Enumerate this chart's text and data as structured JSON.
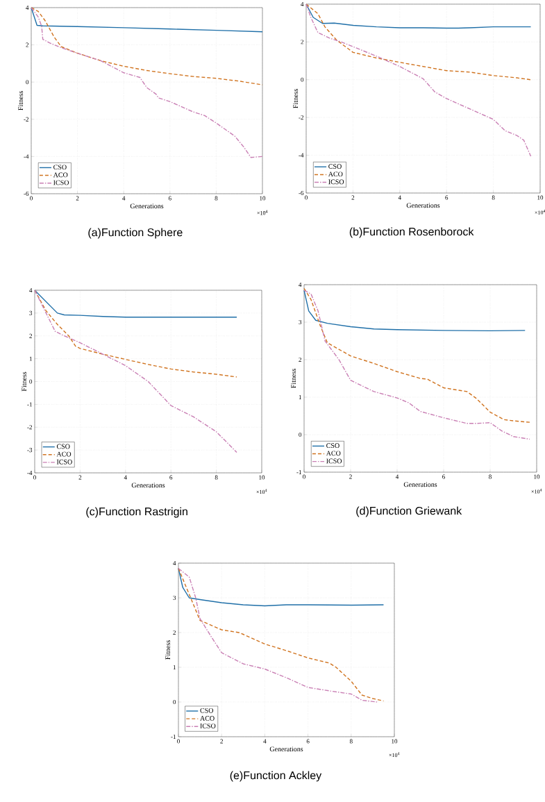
{
  "chart_data": [
    {
      "type": "line",
      "title": "(a)Function Sphere",
      "xlabel": "Generations",
      "ylabel": "Fitness",
      "annotations": [
        "×10$^{4}$"
      ],
      "xlim": [
        0,
        10
      ],
      "ylim": [
        -6,
        4
      ],
      "xticks": [
        0,
        2,
        4,
        6,
        8,
        10
      ],
      "yticks": [
        -6,
        -4,
        -2,
        0,
        2,
        4
      ],
      "grid": true,
      "legend": "bottom left",
      "series": [
        {
          "name": "CSO",
          "color": "#1f6fa8",
          "line_style": "solid",
          "x": [
            0,
            0.25,
            0.5,
            2,
            4,
            6,
            8,
            10
          ],
          "values": [
            4,
            3.05,
            3.02,
            2.98,
            2.92,
            2.85,
            2.78,
            2.7
          ]
        },
        {
          "name": "ACO",
          "color": "#d0731f",
          "line_style": "dashed",
          "x": [
            0,
            0.3,
            0.6,
            1,
            1.3,
            2,
            3,
            4,
            5,
            6,
            7,
            8,
            9,
            10
          ],
          "values": [
            4,
            3.8,
            3.3,
            2.4,
            1.9,
            1.55,
            1.15,
            0.85,
            0.62,
            0.45,
            0.3,
            0.2,
            0.05,
            -0.15
          ]
        },
        {
          "name": "ICSO",
          "color": "#c97fb4",
          "line_style": "dashdot",
          "x": [
            0,
            0.3,
            0.45,
            0.5,
            0.8,
            1.3,
            2,
            3,
            4,
            4.7,
            5,
            5.4,
            5.5,
            6,
            7,
            7.5,
            8,
            8.8,
            9.2,
            9.5,
            10
          ],
          "values": [
            4,
            3.5,
            3.0,
            2.3,
            2.1,
            1.85,
            1.55,
            1.15,
            0.5,
            0.25,
            -0.3,
            -0.65,
            -0.85,
            -1.05,
            -1.6,
            -1.8,
            -2.2,
            -2.9,
            -3.5,
            -4.05,
            -4.0
          ]
        }
      ]
    },
    {
      "type": "line",
      "title": "(b)Function Rosenborock",
      "xlabel": "Generations",
      "ylabel": "Fitness",
      "annotations": [
        "×10$^{4}$"
      ],
      "xlim": [
        0,
        10
      ],
      "ylim": [
        -6,
        4
      ],
      "xticks": [
        0,
        2,
        4,
        6,
        8,
        10
      ],
      "yticks": [
        -6,
        -4,
        -2,
        0,
        2,
        4
      ],
      "grid": true,
      "legend": "bottom left",
      "series": [
        {
          "name": "CSO",
          "color": "#1f6fa8",
          "line_style": "solid",
          "x": [
            0,
            0.3,
            0.7,
            1.2,
            2,
            3,
            4,
            5,
            6,
            6.5,
            7,
            8,
            9.6
          ],
          "values": [
            4,
            3.3,
            2.98,
            3.0,
            2.88,
            2.8,
            2.75,
            2.75,
            2.73,
            2.73,
            2.75,
            2.8,
            2.8
          ]
        },
        {
          "name": "ACO",
          "color": "#d0731f",
          "line_style": "dashed",
          "x": [
            0,
            0.5,
            0.8,
            1.3,
            2,
            3,
            4,
            5,
            6,
            7,
            8,
            9,
            9.6
          ],
          "values": [
            4,
            3.5,
            2.8,
            2.1,
            1.45,
            1.15,
            0.92,
            0.7,
            0.48,
            0.4,
            0.22,
            0.1,
            0.0
          ]
        },
        {
          "name": "ICSO",
          "color": "#c97fb4",
          "line_style": "dashdot",
          "x": [
            0,
            0.2,
            0.5,
            1,
            1.5,
            2,
            3,
            4,
            5,
            5.5,
            6,
            7,
            8,
            8.5,
            9,
            9.3,
            9.6
          ],
          "values": [
            4,
            3.3,
            2.5,
            2.2,
            2.0,
            1.75,
            1.25,
            0.7,
            0.05,
            -0.65,
            -1.0,
            -1.55,
            -2.1,
            -2.7,
            -2.95,
            -3.2,
            -4.05
          ]
        }
      ]
    },
    {
      "type": "line",
      "title": "(c)Function Rastrigin",
      "xlabel": "Generations",
      "ylabel": "Fitness",
      "annotations": [
        "×10$^{4}$"
      ],
      "xlim": [
        0,
        10
      ],
      "ylim": [
        -4,
        4
      ],
      "xticks": [
        0,
        2,
        4,
        6,
        8,
        10
      ],
      "yticks": [
        -4,
        -3,
        -2,
        -1,
        0,
        1,
        2,
        3,
        4
      ],
      "grid": true,
      "legend": "bottom left",
      "series": [
        {
          "name": "CSO",
          "color": "#1f6fa8",
          "line_style": "solid",
          "x": [
            0,
            0.5,
            1,
            1.3,
            2,
            3,
            4,
            6,
            8,
            8.9
          ],
          "values": [
            4,
            3.5,
            3.0,
            2.92,
            2.9,
            2.85,
            2.82,
            2.82,
            2.82,
            2.82
          ]
        },
        {
          "name": "ACO",
          "color": "#d0731f",
          "line_style": "dashed",
          "x": [
            0,
            0.5,
            1,
            1.5,
            1.8,
            2,
            3,
            4,
            5,
            6,
            7,
            8,
            8.9
          ],
          "values": [
            4,
            3.1,
            2.5,
            2.0,
            1.55,
            1.45,
            1.2,
            0.97,
            0.75,
            0.55,
            0.42,
            0.32,
            0.2
          ]
        },
        {
          "name": "ICSO",
          "color": "#c97fb4",
          "line_style": "dashdot",
          "x": [
            0,
            0.5,
            0.9,
            1.2,
            2,
            3,
            4,
            5,
            6,
            7,
            8,
            8.9
          ],
          "values": [
            4,
            3.0,
            2.2,
            2.05,
            1.7,
            1.2,
            0.7,
            0.0,
            -1.05,
            -1.55,
            -2.2,
            -3.1
          ]
        }
      ]
    },
    {
      "type": "line",
      "title": "(d)Function Griewank",
      "xlabel": "Generations",
      "ylabel": "Fitness",
      "annotations": [
        "×10$^{4}$"
      ],
      "xlim": [
        0,
        10
      ],
      "ylim": [
        -1,
        4
      ],
      "xticks": [
        0,
        2,
        4,
        6,
        8,
        10
      ],
      "yticks": [
        -1,
        0,
        1,
        2,
        3,
        4
      ],
      "grid": true,
      "legend": "bottom left",
      "series": [
        {
          "name": "CSO",
          "color": "#1f6fa8",
          "line_style": "solid",
          "x": [
            0,
            0.2,
            0.5,
            1,
            2,
            3,
            4,
            6,
            8,
            9.5
          ],
          "values": [
            3.85,
            3.3,
            3.05,
            2.97,
            2.88,
            2.82,
            2.8,
            2.78,
            2.77,
            2.78
          ]
        },
        {
          "name": "ACO",
          "color": "#d0731f",
          "line_style": "dashed",
          "x": [
            0,
            0.3,
            0.7,
            1,
            2,
            3,
            4,
            5,
            5.3,
            6,
            7,
            7.4,
            8,
            8.6,
            9,
            9.7
          ],
          "values": [
            3.9,
            3.6,
            2.9,
            2.45,
            2.1,
            1.9,
            1.68,
            1.5,
            1.48,
            1.25,
            1.15,
            0.97,
            0.6,
            0.4,
            0.37,
            0.33
          ]
        },
        {
          "name": "ICSO",
          "color": "#c97fb4",
          "line_style": "dashdot",
          "x": [
            0,
            0.3,
            0.6,
            0.9,
            1.5,
            2,
            3,
            4,
            4.5,
            5,
            6,
            7,
            7.4,
            8,
            8.5,
            9,
            9.7
          ],
          "values": [
            3.85,
            3.75,
            3.3,
            2.5,
            2.0,
            1.45,
            1.15,
            0.98,
            0.85,
            0.62,
            0.45,
            0.3,
            0.3,
            0.32,
            0.1,
            -0.05,
            -0.12
          ]
        }
      ]
    },
    {
      "type": "line",
      "title": "(e)Function Ackley",
      "xlabel": "Generations",
      "ylabel": "Fitness",
      "annotations": [
        "×10$^{4}$"
      ],
      "xlim": [
        0,
        10
      ],
      "ylim": [
        -1,
        4
      ],
      "xticks": [
        0,
        2,
        4,
        6,
        8,
        10
      ],
      "yticks": [
        -1,
        0,
        1,
        2,
        3,
        4
      ],
      "grid": true,
      "legend": "bottom left",
      "series": [
        {
          "name": "CSO",
          "color": "#1f6fa8",
          "line_style": "solid",
          "x": [
            0,
            0.2,
            0.5,
            1,
            2,
            3,
            4,
            5,
            6,
            8,
            9.5
          ],
          "values": [
            3.85,
            3.3,
            3.0,
            2.95,
            2.86,
            2.8,
            2.77,
            2.8,
            2.8,
            2.79,
            2.8
          ]
        },
        {
          "name": "ACO",
          "color": "#d0731f",
          "line_style": "dashed",
          "x": [
            0,
            0.5,
            1,
            2,
            2.8,
            3,
            4,
            5,
            6,
            7,
            7.3,
            8,
            8.5,
            9,
            9.5
          ],
          "values": [
            3.85,
            3.1,
            2.35,
            2.08,
            2.0,
            1.95,
            1.67,
            1.48,
            1.27,
            1.12,
            1.0,
            0.6,
            0.2,
            0.1,
            0.03
          ]
        },
        {
          "name": "ICSO",
          "color": "#c97fb4",
          "line_style": "dashdot",
          "x": [
            0,
            0.5,
            0.8,
            1,
            1.5,
            2,
            3,
            4,
            5,
            6,
            7,
            8,
            8.5,
            9.2
          ],
          "values": [
            3.85,
            3.6,
            3.0,
            2.4,
            1.9,
            1.42,
            1.1,
            0.95,
            0.7,
            0.42,
            0.32,
            0.23,
            0.05,
            0.0
          ]
        }
      ]
    }
  ]
}
